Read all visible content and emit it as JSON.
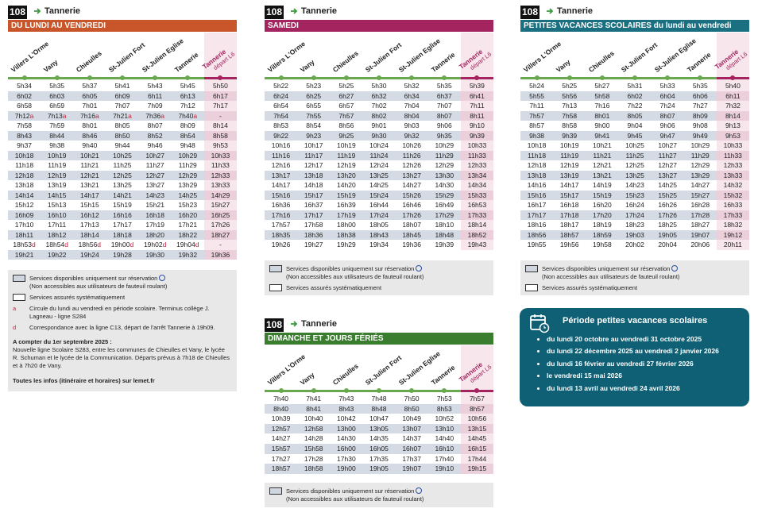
{
  "stops": [
    "Villers L'Orme",
    "Vany",
    "Chieulles",
    "St-Julien Fort",
    "St-Julien Eglise",
    "Tannerie",
    "Tannerie"
  ],
  "last_stop_note": "départ L6",
  "tables": [
    {
      "line": "108",
      "destination": "Tannerie",
      "period": "DU LUNDI AU VENDREDI",
      "rows": [
        [
          "5h34",
          "5h35",
          "5h37",
          "5h41",
          "5h43",
          "5h45",
          "5h50"
        ],
        [
          "6h02",
          "6h03",
          "6h05",
          "6h09",
          "6h11",
          "6h13",
          "6h17"
        ],
        [
          "6h58",
          "6h59",
          "7h01",
          "7h07",
          "7h09",
          "7h12",
          "7h17"
        ],
        [
          "7h12a",
          "7h13a",
          "7h16a",
          "7h21a",
          "7h36a",
          "7h40a",
          "-"
        ],
        [
          "7h58",
          "7h59",
          "8h01",
          "8h05",
          "8h07",
          "8h09",
          "8h14"
        ],
        [
          "8h43",
          "8h44",
          "8h46",
          "8h50",
          "8h52",
          "8h54",
          "8h58"
        ],
        [
          "9h37",
          "9h38",
          "9h40",
          "9h44",
          "9h46",
          "9h48",
          "9h53"
        ],
        [
          "10h18",
          "10h19",
          "10h21",
          "10h25",
          "10h27",
          "10h29",
          "10h33"
        ],
        [
          "11h18",
          "11h19",
          "11h21",
          "11h25",
          "11h27",
          "11h29",
          "11h33"
        ],
        [
          "12h18",
          "12h19",
          "12h21",
          "12h25",
          "12h27",
          "12h29",
          "12h33"
        ],
        [
          "13h18",
          "13h19",
          "13h21",
          "13h25",
          "13h27",
          "13h29",
          "13h33"
        ],
        [
          "14h14",
          "14h15",
          "14h17",
          "14h21",
          "14h23",
          "14h25",
          "14h29"
        ],
        [
          "15h12",
          "15h13",
          "15h15",
          "15h19",
          "15h21",
          "15h23",
          "15h27"
        ],
        [
          "16h09",
          "16h10",
          "16h12",
          "16h16",
          "16h18",
          "16h20",
          "16h25"
        ],
        [
          "17h10",
          "17h11",
          "17h13",
          "17h17",
          "17h19",
          "17h21",
          "17h26"
        ],
        [
          "18h11",
          "18h12",
          "18h14",
          "18h18",
          "18h20",
          "18h22",
          "18h27"
        ],
        [
          "18h53d",
          "18h54d",
          "18h56d",
          "19h00d",
          "19h02d",
          "19h04d",
          "-"
        ],
        [
          "19h21",
          "19h22",
          "19h24",
          "19h28",
          "19h30",
          "19h32",
          "19h36"
        ]
      ],
      "legend": {
        "reservation": "Services disponibles uniquement sur réservation",
        "reservation_note": "(Non accessibles aux utilisateurs de fauteuil roulant)",
        "systematic": "Services assurés systématiquement",
        "notes": [
          {
            "key": "a",
            "text": "Circule du lundi au vendredi en période scolaire. Terminus collège J. Lagneau - ligne S284"
          },
          {
            "key": "d",
            "text": "Correspondance avec la ligne C13, départ de l'arrêt Tannerie à 19h09."
          }
        ],
        "info_title": "A compter du 1er septembre 2025 :",
        "info_text": "Nouvelle ligne Scolaire S283, entre les communes de Chieulles et Vany, le lycée R. Schuman et le lycée de la Communication. Départs prévus à 7h18 de Chieulles et à 7h20 de Vany.",
        "more_info": "Toutes les infos (itinéraire et horaires) sur lemet.fr"
      }
    },
    {
      "line": "108",
      "destination": "Tannerie",
      "period": "SAMEDI",
      "rows": [
        [
          "5h22",
          "5h23",
          "5h25",
          "5h30",
          "5h32",
          "5h35",
          "5h39"
        ],
        [
          "6h24",
          "6h25",
          "6h27",
          "6h32",
          "6h34",
          "6h37",
          "6h41"
        ],
        [
          "6h54",
          "6h55",
          "6h57",
          "7h02",
          "7h04",
          "7h07",
          "7h11"
        ],
        [
          "7h54",
          "7h55",
          "7h57",
          "8h02",
          "8h04",
          "8h07",
          "8h11"
        ],
        [
          "8h53",
          "8h54",
          "8h56",
          "9h01",
          "9h03",
          "9h06",
          "9h10"
        ],
        [
          "9h22",
          "9h23",
          "9h25",
          "9h30",
          "9h32",
          "9h35",
          "9h39"
        ],
        [
          "10h16",
          "10h17",
          "10h19",
          "10h24",
          "10h26",
          "10h29",
          "10h33"
        ],
        [
          "11h16",
          "11h17",
          "11h19",
          "11h24",
          "11h26",
          "11h29",
          "11h33"
        ],
        [
          "12h16",
          "12h17",
          "12h19",
          "12h24",
          "12h26",
          "12h29",
          "12h33"
        ],
        [
          "13h17",
          "13h18",
          "13h20",
          "13h25",
          "13h27",
          "13h30",
          "13h34"
        ],
        [
          "14h17",
          "14h18",
          "14h20",
          "14h25",
          "14h27",
          "14h30",
          "14h34"
        ],
        [
          "15h16",
          "15h17",
          "15h19",
          "15h24",
          "15h26",
          "15h29",
          "15h33"
        ],
        [
          "16h36",
          "16h37",
          "16h39",
          "16h44",
          "16h46",
          "16h49",
          "16h53"
        ],
        [
          "17h16",
          "17h17",
          "17h19",
          "17h24",
          "17h26",
          "17h29",
          "17h33"
        ],
        [
          "17h57",
          "17h58",
          "18h00",
          "18h05",
          "18h07",
          "18h10",
          "18h14"
        ],
        [
          "18h35",
          "18h36",
          "18h38",
          "18h43",
          "18h45",
          "18h48",
          "18h52"
        ],
        [
          "19h26",
          "19h27",
          "19h29",
          "19h34",
          "19h36",
          "19h39",
          "19h43"
        ]
      ],
      "legend": {
        "reservation": "Services disponibles uniquement sur réservation",
        "reservation_note": "(Non accessibles aux utilisateurs de fauteuil roulant)",
        "systematic": "Services assurés systématiquement"
      }
    },
    {
      "line": "108",
      "destination": "Tannerie",
      "period": "PETITES VACANCES SCOLAIRES du lundi au vendredi",
      "rows": [
        [
          "5h24",
          "5h25",
          "5h27",
          "5h31",
          "5h33",
          "5h35",
          "5h40"
        ],
        [
          "5h55",
          "5h56",
          "5h58",
          "6h02",
          "6h04",
          "6h06",
          "6h11"
        ],
        [
          "7h11",
          "7h13",
          "7h16",
          "7h22",
          "7h24",
          "7h27",
          "7h32"
        ],
        [
          "7h57",
          "7h58",
          "8h01",
          "8h05",
          "8h07",
          "8h09",
          "8h14"
        ],
        [
          "8h57",
          "8h58",
          "9h00",
          "9h04",
          "9h06",
          "9h08",
          "9h13"
        ],
        [
          "9h38",
          "9h39",
          "9h41",
          "9h45",
          "9h47",
          "9h49",
          "9h53"
        ],
        [
          "10h18",
          "10h19",
          "10h21",
          "10h25",
          "10h27",
          "10h29",
          "10h33"
        ],
        [
          "11h18",
          "11h19",
          "11h21",
          "11h25",
          "11h27",
          "11h29",
          "11h33"
        ],
        [
          "12h18",
          "12h19",
          "12h21",
          "12h25",
          "12h27",
          "12h29",
          "12h33"
        ],
        [
          "13h18",
          "13h19",
          "13h21",
          "13h25",
          "13h27",
          "13h29",
          "13h33"
        ],
        [
          "14h16",
          "14h17",
          "14h19",
          "14h23",
          "14h25",
          "14h27",
          "14h32"
        ],
        [
          "15h16",
          "15h17",
          "15h19",
          "15h23",
          "15h25",
          "15h27",
          "15h32"
        ],
        [
          "16h17",
          "16h18",
          "16h20",
          "16h24",
          "16h26",
          "16h28",
          "16h33"
        ],
        [
          "17h17",
          "17h18",
          "17h20",
          "17h24",
          "17h26",
          "17h28",
          "17h33"
        ],
        [
          "18h16",
          "18h17",
          "18h19",
          "18h23",
          "18h25",
          "18h27",
          "18h32"
        ],
        [
          "18h56",
          "18h57",
          "18h59",
          "19h03",
          "19h05",
          "19h07",
          "19h12"
        ],
        [
          "19h55",
          "19h56",
          "19h58",
          "20h02",
          "20h04",
          "20h06",
          "20h11"
        ]
      ],
      "legend": {
        "reservation": "Services disponibles uniquement sur réservation",
        "reservation_note": "(Non accessibles aux utilisateurs de fauteuil roulant)",
        "systematic": "Services assurés systématiquement"
      }
    },
    {
      "line": "108",
      "destination": "Tannerie",
      "period": "DIMANCHE ET JOURS FÉRIÉS",
      "rows": [
        [
          "7h40",
          "7h41",
          "7h43",
          "7h48",
          "7h50",
          "7h53",
          "7h57"
        ],
        [
          "8h40",
          "8h41",
          "8h43",
          "8h48",
          "8h50",
          "8h53",
          "8h57"
        ],
        [
          "10h39",
          "10h40",
          "10h42",
          "10h47",
          "10h49",
          "10h52",
          "10h56"
        ],
        [
          "12h57",
          "12h58",
          "13h00",
          "13h05",
          "13h07",
          "13h10",
          "13h15"
        ],
        [
          "14h27",
          "14h28",
          "14h30",
          "14h35",
          "14h37",
          "14h40",
          "14h45"
        ],
        [
          "15h57",
          "15h58",
          "16h00",
          "16h05",
          "16h07",
          "16h10",
          "16h15"
        ],
        [
          "17h27",
          "17h28",
          "17h30",
          "17h35",
          "17h37",
          "17h40",
          "17h44"
        ],
        [
          "18h57",
          "18h58",
          "19h00",
          "19h05",
          "19h07",
          "19h10",
          "19h15"
        ]
      ],
      "legend": {
        "reservation": "Services disponibles uniquement sur réservation",
        "reservation_note": "(Non accessibles aux utilisateurs de fauteuil roulant)"
      }
    }
  ],
  "school_holidays": {
    "title": "Période petites vacances scolaires",
    "items": [
      "du lundi 20 octobre au vendredi 31 octobre 2025",
      "du lundi 22 décembre 2025 au vendredi 2 janvier 2026",
      "du lundi 16 février au vendredi 27 février 2026",
      "le vendredi 15 mai 2026",
      "du lundi 13 avril au vendredi 24 avril 2026"
    ]
  }
}
